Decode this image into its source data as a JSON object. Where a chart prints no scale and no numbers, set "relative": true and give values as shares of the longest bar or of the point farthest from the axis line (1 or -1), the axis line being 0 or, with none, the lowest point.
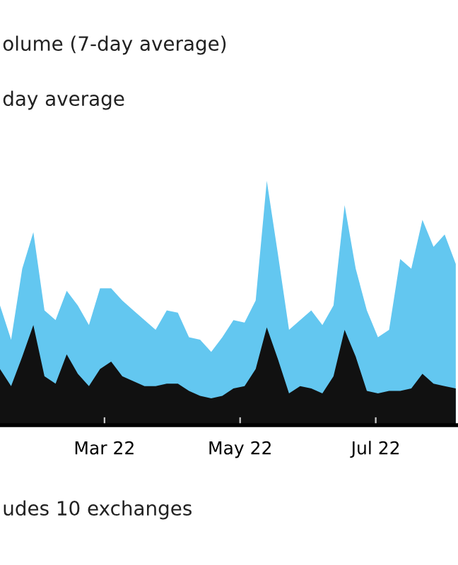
{
  "chart_data": {
    "type": "area",
    "title": "olume (7-day average)",
    "relative": true,
    "annotations": [
      "day average",
      "udes 10 exchanges"
    ],
    "x": [
      "2022-01-13",
      "2022-01-18",
      "2022-01-23",
      "2022-01-28",
      "2022-02-02",
      "2022-02-07",
      "2022-02-12",
      "2022-02-17",
      "2022-02-22",
      "2022-02-27",
      "2022-03-04",
      "2022-03-09",
      "2022-03-14",
      "2022-03-19",
      "2022-03-24",
      "2022-03-29",
      "2022-04-03",
      "2022-04-08",
      "2022-04-13",
      "2022-04-18",
      "2022-04-23",
      "2022-04-28",
      "2022-05-03",
      "2022-05-08",
      "2022-05-13",
      "2022-05-18",
      "2022-05-23",
      "2022-05-28",
      "2022-06-02",
      "2022-06-07",
      "2022-06-12",
      "2022-06-17",
      "2022-06-22",
      "2022-06-27",
      "2022-07-02",
      "2022-07-07",
      "2022-07-12",
      "2022-07-17",
      "2022-07-22",
      "2022-07-27",
      "2022-08-01",
      "2022-08-06"
    ],
    "xlim": [
      "2022-01-13",
      "2022-08-07"
    ],
    "xticks": [
      {
        "value": "2022-03-01",
        "label": "Mar 22"
      },
      {
        "value": "2022-05-01",
        "label": "May 22"
      },
      {
        "value": "2022-07-01",
        "label": "Jul 22"
      }
    ],
    "series": [
      {
        "color": "#63c7f0",
        "values": [
          0.49,
          0.35,
          0.64,
          0.79,
          0.47,
          0.43,
          0.55,
          0.49,
          0.41,
          0.56,
          0.56,
          0.51,
          0.47,
          0.43,
          0.39,
          0.47,
          0.46,
          0.36,
          0.35,
          0.3,
          0.36,
          0.43,
          0.42,
          0.51,
          1.0,
          0.7,
          0.39,
          0.43,
          0.47,
          0.41,
          0.49,
          0.9,
          0.64,
          0.47,
          0.36,
          0.39,
          0.68,
          0.64,
          0.84,
          0.73,
          0.78,
          0.66
        ]
      },
      {
        "color": "#111111",
        "values": [
          0.23,
          0.16,
          0.28,
          0.41,
          0.2,
          0.17,
          0.29,
          0.21,
          0.16,
          0.23,
          0.26,
          0.2,
          0.18,
          0.16,
          0.16,
          0.17,
          0.17,
          0.14,
          0.12,
          0.11,
          0.12,
          0.15,
          0.16,
          0.23,
          0.4,
          0.27,
          0.13,
          0.16,
          0.15,
          0.13,
          0.2,
          0.39,
          0.28,
          0.14,
          0.13,
          0.14,
          0.14,
          0.15,
          0.21,
          0.17,
          0.16,
          0.15
        ]
      }
    ]
  }
}
